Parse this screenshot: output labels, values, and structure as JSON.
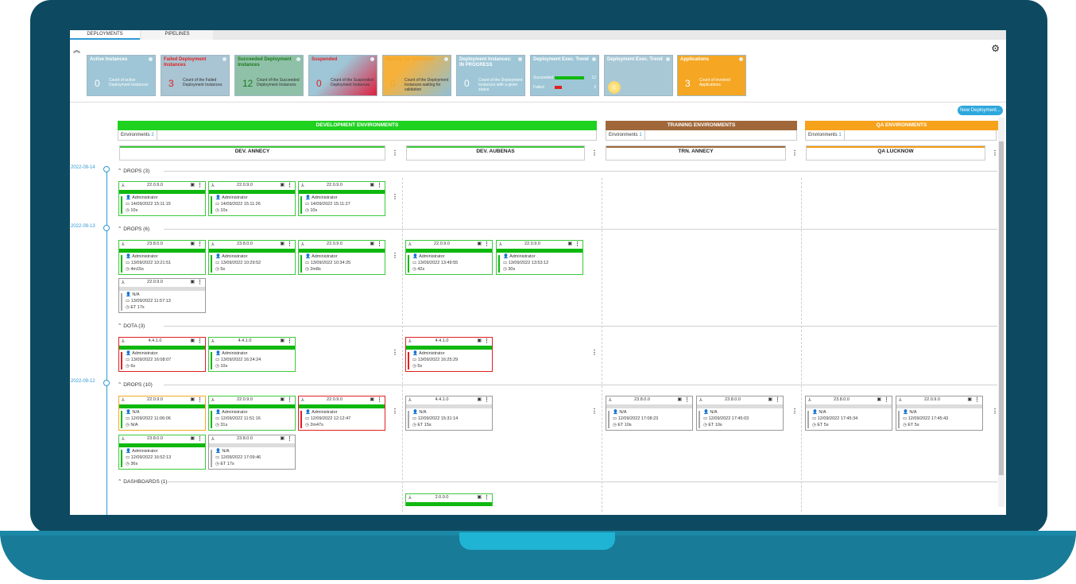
{
  "tabs": [
    "DEPLOYMENTS",
    "PIPELINES"
  ],
  "new_deployment": "New Deployment...",
  "kpis": [
    {
      "title": "Active Instances",
      "value": "0",
      "desc": "Count of active Deployment Instances",
      "color": "#9ec6d6"
    },
    {
      "title": "Failed Deployment Instances",
      "value": "3",
      "desc": "Count of the Failed Deployment Instances",
      "color": "#a9c4d2",
      "title_color": "#e02020"
    },
    {
      "title": "Succeeded Deployment Instances",
      "value": "12",
      "desc": "Count of the Succeeded Deployment Instances",
      "color": "#8fc1a8",
      "title_color": "#1b7a1b"
    },
    {
      "title": "Suspended",
      "value": "0",
      "desc": "Count of the Suspended Deployment Instances",
      "color": "#c86e86",
      "title_color": "#e02020"
    },
    {
      "title": "Waiting for Validation",
      "value": "0",
      "desc": "Count of the Deployment Instances waiting for validation",
      "color": "#e9c27a",
      "title_color": "#f5a623"
    },
    {
      "title": "Deployment Instances: IN PROGRESS",
      "value": "0",
      "desc": "Count of the Deployment Instances with a given status",
      "color": "#9ec6d6"
    },
    {
      "title": "Deployment Exec. Trend",
      "value": "",
      "desc": "",
      "color": "#9ec6d6",
      "trend": {
        "succeeded_label": "Succeeded",
        "succeeded": "12",
        "failed_label": "Failed",
        "failed": "3"
      }
    },
    {
      "title": "Deployment Exec. Trend",
      "value": "",
      "desc": "",
      "color": "#a8c8d6"
    },
    {
      "title": "Applications",
      "value": "3",
      "desc": "Count of Involved Applications",
      "color": "#f5a623"
    }
  ],
  "environments": [
    {
      "name": "DEVELOPMENT ENVIRONMENTS",
      "color": "#1fd21f",
      "tag": "Environments",
      "count": "2"
    },
    {
      "name": "TRAINING ENVIRONMENTS",
      "color": "#a0683a",
      "tag": "Environments",
      "count": "1"
    },
    {
      "name": "QA ENVIRONMENTS",
      "color": "#f7a21b",
      "tag": "Environments",
      "count": "1"
    }
  ],
  "columns": [
    "DEV. ANNECY",
    "DEV. AUBENAS",
    "TRN. ANNECY",
    "QA LUCKNOW"
  ],
  "dates": [
    "2022-09-14",
    "2022-09-13",
    "2022-09-12"
  ],
  "groups": [
    "DROPS (3)",
    "DROPS (6)",
    "DOTA (3)",
    "DROPS (10)",
    "DASHBOARDS (1)"
  ],
  "cards": [
    {
      "ver": "22.0.9.0",
      "user": "Administrator",
      "date": "14/09/2022 15:11:15",
      "dur": "10s",
      "status": "green"
    },
    {
      "ver": "22.0.9.0",
      "user": "Administrator",
      "date": "14/09/2022 15:11:26",
      "dur": "10s",
      "status": "green"
    },
    {
      "ver": "22.0.9.0",
      "user": "Administrator",
      "date": "14/09/2022 15:11:27",
      "dur": "10s",
      "status": "green"
    },
    {
      "ver": "23.8.0.0",
      "user": "Administrator",
      "date": "13/09/2022 10:21:51",
      "dur": "4m15s",
      "status": "green"
    },
    {
      "ver": "23.8.0.0",
      "user": "Administrator",
      "date": "13/09/2022 10:29:52",
      "dur": "5s",
      "status": "green"
    },
    {
      "ver": "22.0.9.0",
      "user": "Administrator",
      "date": "13/09/2022 10:34:25",
      "dur": "2m8s",
      "status": "green"
    },
    {
      "ver": "22.0.9.0",
      "user": "Administrator",
      "date": "13/09/2022 13:49:55",
      "dur": "42s",
      "status": "green"
    },
    {
      "ver": "22.0.9.0",
      "user": "Administrator",
      "date": "13/09/2022 13:53:12",
      "dur": "30s",
      "status": "green"
    },
    {
      "ver": "22.0.9.0",
      "user": "N/A",
      "date": "13/09/2022 11:57:13",
      "dur": "ET 17s",
      "status": "gray"
    },
    {
      "ver": "4.4.1.0",
      "user": "Administrator",
      "date": "13/09/2022 16:08:07",
      "dur": "6s",
      "status": "red"
    },
    {
      "ver": "4.4.1.0",
      "user": "Administrator",
      "date": "13/09/2022 16:24:24",
      "dur": "10s",
      "status": "green"
    },
    {
      "ver": "4.4.1.0",
      "user": "Administrator",
      "date": "13/09/2022 16:25:29",
      "dur": "5s",
      "status": "red"
    },
    {
      "ver": "22.0.9.0",
      "user": "N/A",
      "date": "12/09/2022 11:06:06",
      "dur": "N/A",
      "status": "orange"
    },
    {
      "ver": "22.0.9.0",
      "user": "Administrator",
      "date": "12/09/2022 11:51:16",
      "dur": "31s",
      "status": "green"
    },
    {
      "ver": "22.0.9.0",
      "user": "Administrator",
      "date": "12/09/2022 12:12:47",
      "dur": "2m47s",
      "status": "red"
    },
    {
      "ver": "4.4.1.0",
      "user": "N/A",
      "date": "12/09/2022 15:31:14",
      "dur": "ET 15s",
      "status": "gray"
    },
    {
      "ver": "23.8.0.0",
      "user": "N/A",
      "date": "12/09/2022 17:08:23",
      "dur": "ET 10s",
      "status": "gray"
    },
    {
      "ver": "23.8.0.0",
      "user": "N/A",
      "date": "12/09/2022 17:45:03",
      "dur": "ET 10s",
      "status": "gray"
    },
    {
      "ver": "23.8.0.0",
      "user": "N/A",
      "date": "12/09/2022 17:45:34",
      "dur": "ET 5s",
      "status": "gray"
    },
    {
      "ver": "22.0.9.0",
      "user": "N/A",
      "date": "12/09/2022 17:45:43",
      "dur": "ET 5s",
      "status": "gray"
    },
    {
      "ver": "23.8.0.0",
      "user": "Administrator",
      "date": "12/09/2022 16:52:13",
      "dur": "36s",
      "status": "green"
    },
    {
      "ver": "23.8.0.0",
      "user": "N/A",
      "date": "12/09/2022 17:09:46",
      "dur": "ET 17s",
      "status": "gray"
    },
    {
      "ver": "2.0.0.0",
      "user": "",
      "date": "",
      "dur": "",
      "status": "green"
    }
  ]
}
